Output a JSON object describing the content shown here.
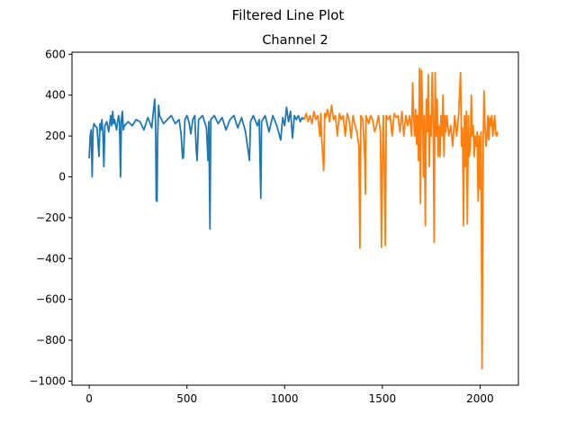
{
  "chart_data": {
    "type": "line",
    "suptitle": "Filtered Line Plot",
    "title": "Channel 2",
    "xlabel": "",
    "ylabel": "",
    "xlim": [
      -88,
      2196
    ],
    "ylim": [
      -1020,
      610
    ],
    "xticks": [
      0,
      500,
      1000,
      1500,
      2000
    ],
    "yticks": [
      -1000,
      -800,
      -600,
      -400,
      -200,
      0,
      200,
      400,
      600
    ],
    "xtick_labels": [
      "0",
      "500",
      "1000",
      "1500",
      "2000"
    ],
    "ytick_labels": [
      "−1000",
      "−800",
      "−600",
      "−400",
      "−200",
      "0",
      "200",
      "400",
      "600"
    ],
    "grid": false,
    "legend": "none",
    "series": [
      {
        "color": "#1f77b4",
        "points": [
          [
            0,
            90
          ],
          [
            5,
            200
          ],
          [
            10,
            230
          ],
          [
            15,
            0
          ],
          [
            20,
            240
          ],
          [
            25,
            260
          ],
          [
            30,
            250
          ],
          [
            40,
            240
          ],
          [
            50,
            100
          ],
          [
            55,
            260
          ],
          [
            60,
            230
          ],
          [
            65,
            280
          ],
          [
            70,
            220
          ],
          [
            75,
            50
          ],
          [
            80,
            250
          ],
          [
            90,
            270
          ],
          [
            100,
            220
          ],
          [
            110,
            300
          ],
          [
            115,
            250
          ],
          [
            120,
            320
          ],
          [
            125,
            260
          ],
          [
            130,
            280
          ],
          [
            140,
            230
          ],
          [
            150,
            300
          ],
          [
            155,
            270
          ],
          [
            160,
            0
          ],
          [
            165,
            280
          ],
          [
            170,
            320
          ],
          [
            175,
            230
          ],
          [
            180,
            250
          ],
          [
            200,
            270
          ],
          [
            220,
            250
          ],
          [
            240,
            280
          ],
          [
            260,
            270
          ],
          [
            280,
            230
          ],
          [
            300,
            290
          ],
          [
            320,
            240
          ],
          [
            335,
            380
          ],
          [
            340,
            260
          ],
          [
            343,
            -115
          ],
          [
            347,
            -120
          ],
          [
            350,
            180
          ],
          [
            355,
            350
          ],
          [
            360,
            300
          ],
          [
            370,
            280
          ],
          [
            380,
            260
          ],
          [
            400,
            280
          ],
          [
            420,
            300
          ],
          [
            440,
            260
          ],
          [
            460,
            280
          ],
          [
            470,
            210
          ],
          [
            478,
            90
          ],
          [
            482,
            95
          ],
          [
            490,
            280
          ],
          [
            500,
            300
          ],
          [
            510,
            270
          ],
          [
            520,
            210
          ],
          [
            530,
            280
          ],
          [
            540,
            300
          ],
          [
            548,
            130
          ],
          [
            552,
            80
          ],
          [
            560,
            280
          ],
          [
            580,
            300
          ],
          [
            600,
            240
          ],
          [
            608,
            80
          ],
          [
            612,
            270
          ],
          [
            618,
            -255
          ],
          [
            622,
            280
          ],
          [
            640,
            300
          ],
          [
            660,
            260
          ],
          [
            680,
            290
          ],
          [
            700,
            230
          ],
          [
            720,
            280
          ],
          [
            740,
            300
          ],
          [
            760,
            240
          ],
          [
            780,
            290
          ],
          [
            800,
            220
          ],
          [
            820,
            80
          ],
          [
            825,
            270
          ],
          [
            840,
            300
          ],
          [
            860,
            250
          ],
          [
            870,
            280
          ],
          [
            878,
            -105
          ],
          [
            882,
            270
          ],
          [
            900,
            300
          ],
          [
            920,
            220
          ],
          [
            940,
            300
          ],
          [
            960,
            250
          ],
          [
            980,
            180
          ],
          [
            990,
            290
          ],
          [
            1000,
            250
          ],
          [
            1010,
            340
          ],
          [
            1020,
            270
          ],
          [
            1030,
            320
          ],
          [
            1040,
            190
          ],
          [
            1050,
            300
          ],
          [
            1060,
            280
          ],
          [
            1070,
            300
          ],
          [
            1080,
            270
          ],
          [
            1090,
            290
          ],
          [
            1100,
            280
          ]
        ]
      },
      {
        "color": "#ff7f0e",
        "points": [
          [
            1100,
            280
          ],
          [
            1110,
            310
          ],
          [
            1120,
            270
          ],
          [
            1130,
            300
          ],
          [
            1140,
            260
          ],
          [
            1150,
            320
          ],
          [
            1160,
            280
          ],
          [
            1170,
            300
          ],
          [
            1180,
            200
          ],
          [
            1185,
            310
          ],
          [
            1190,
            180
          ],
          [
            1200,
            30
          ],
          [
            1205,
            310
          ],
          [
            1210,
            290
          ],
          [
            1220,
            330
          ],
          [
            1230,
            270
          ],
          [
            1240,
            350
          ],
          [
            1250,
            280
          ],
          [
            1260,
            300
          ],
          [
            1270,
            200
          ],
          [
            1280,
            310
          ],
          [
            1290,
            280
          ],
          [
            1300,
            300
          ],
          [
            1310,
            200
          ],
          [
            1320,
            310
          ],
          [
            1330,
            280
          ],
          [
            1340,
            190
          ],
          [
            1350,
            300
          ],
          [
            1360,
            250
          ],
          [
            1370,
            220
          ],
          [
            1380,
            150
          ],
          [
            1385,
            -350
          ],
          [
            1390,
            300
          ],
          [
            1400,
            280
          ],
          [
            1410,
            90
          ],
          [
            1413,
            -85
          ],
          [
            1416,
            300
          ],
          [
            1430,
            260
          ],
          [
            1440,
            300
          ],
          [
            1450,
            280
          ],
          [
            1460,
            220
          ],
          [
            1470,
            250
          ],
          [
            1480,
            300
          ],
          [
            1490,
            220
          ],
          [
            1495,
            -345
          ],
          [
            1500,
            60
          ],
          [
            1505,
            300
          ],
          [
            1510,
            60
          ],
          [
            1515,
            -335
          ],
          [
            1520,
            300
          ],
          [
            1530,
            280
          ],
          [
            1540,
            300
          ],
          [
            1550,
            200
          ],
          [
            1560,
            310
          ],
          [
            1570,
            290
          ],
          [
            1580,
            300
          ],
          [
            1590,
            220
          ],
          [
            1600,
            320
          ],
          [
            1610,
            200
          ],
          [
            1620,
            300
          ],
          [
            1630,
            250
          ],
          [
            1640,
            300
          ],
          [
            1650,
            200
          ],
          [
            1655,
            460
          ],
          [
            1660,
            300
          ],
          [
            1665,
            200
          ],
          [
            1670,
            330
          ],
          [
            1675,
            160
          ],
          [
            1680,
            300
          ],
          [
            1685,
            80
          ],
          [
            1690,
            530
          ],
          [
            1695,
            -130
          ],
          [
            1700,
            520
          ],
          [
            1705,
            350
          ],
          [
            1710,
            0
          ],
          [
            1715,
            300
          ],
          [
            1720,
            -240
          ],
          [
            1725,
            380
          ],
          [
            1730,
            220
          ],
          [
            1735,
            500
          ],
          [
            1740,
            50
          ],
          [
            1745,
            300
          ],
          [
            1750,
            200
          ],
          [
            1755,
            510
          ],
          [
            1760,
            300
          ],
          [
            1765,
            -320
          ],
          [
            1770,
            510
          ],
          [
            1775,
            200
          ],
          [
            1780,
            380
          ],
          [
            1785,
            100
          ],
          [
            1790,
            250
          ],
          [
            1795,
            100
          ],
          [
            1800,
            300
          ],
          [
            1805,
            200
          ],
          [
            1810,
            400
          ],
          [
            1815,
            100
          ],
          [
            1820,
            300
          ],
          [
            1825,
            220
          ],
          [
            1830,
            300
          ],
          [
            1840,
            200
          ],
          [
            1850,
            250
          ],
          [
            1860,
            150
          ],
          [
            1870,
            300
          ],
          [
            1880,
            200
          ],
          [
            1890,
            300
          ],
          [
            1900,
            510
          ],
          [
            1905,
            150
          ],
          [
            1910,
            240
          ],
          [
            1915,
            -240
          ],
          [
            1920,
            300
          ],
          [
            1925,
            50
          ],
          [
            1930,
            320
          ],
          [
            1935,
            -230
          ],
          [
            1940,
            300
          ],
          [
            1945,
            100
          ],
          [
            1950,
            150
          ],
          [
            1955,
            400
          ],
          [
            1960,
            200
          ],
          [
            1965,
            250
          ],
          [
            1970,
            100
          ],
          [
            1975,
            200
          ],
          [
            1980,
            150
          ],
          [
            1985,
            220
          ],
          [
            1990,
            -120
          ],
          [
            1995,
            200
          ],
          [
            2000,
            -60
          ],
          [
            2005,
            220
          ],
          [
            2010,
            -940
          ],
          [
            2013,
            -370
          ],
          [
            2016,
            150
          ],
          [
            2020,
            420
          ],
          [
            2025,
            250
          ],
          [
            2030,
            150
          ],
          [
            2035,
            200
          ],
          [
            2040,
            300
          ],
          [
            2045,
            180
          ],
          [
            2050,
            290
          ],
          [
            2055,
            250
          ],
          [
            2060,
            300
          ],
          [
            2065,
            200
          ],
          [
            2070,
            250
          ],
          [
            2075,
            300
          ],
          [
            2080,
            210
          ],
          [
            2085,
            200
          ],
          [
            2090,
            220
          ]
        ]
      }
    ]
  }
}
